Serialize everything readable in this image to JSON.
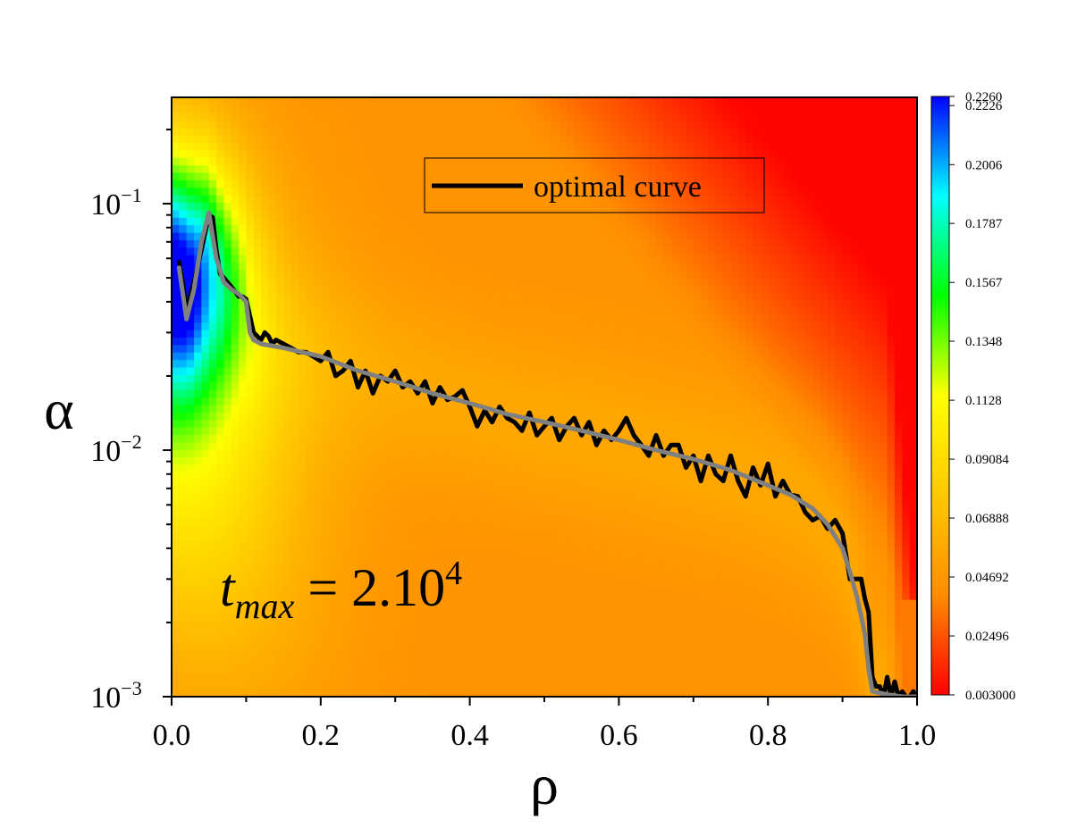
{
  "chart_data": {
    "type": "heatmap",
    "title": "",
    "xlabel": "ρ",
    "ylabel": "α",
    "xlim": [
      0.0,
      1.0
    ],
    "ylim": [
      0.001,
      0.27
    ],
    "yscale": "log",
    "x_ticks": [
      {
        "value": 0.0,
        "label": "0.0"
      },
      {
        "value": 0.2,
        "label": "0.2"
      },
      {
        "value": 0.4,
        "label": "0.4"
      },
      {
        "value": 0.6,
        "label": "0.6"
      },
      {
        "value": 0.8,
        "label": "0.8"
      },
      {
        "value": 1.0,
        "label": "1.0"
      }
    ],
    "y_ticks": [
      {
        "value": 0.001,
        "base": "10",
        "exp": "−3"
      },
      {
        "value": 0.01,
        "base": "10",
        "exp": "−2"
      },
      {
        "value": 0.1,
        "base": "10",
        "exp": "−1"
      }
    ],
    "colorbar": {
      "min": 0.003,
      "max": 0.226,
      "ticks": [
        {
          "value": 0.226,
          "label": "0.2260"
        },
        {
          "value": 0.2226,
          "label": "0.2226"
        },
        {
          "value": 0.2006,
          "label": "0.2006"
        },
        {
          "value": 0.1787,
          "label": "0.1787"
        },
        {
          "value": 0.1567,
          "label": "0.1567"
        },
        {
          "value": 0.1348,
          "label": "0.1348"
        },
        {
          "value": 0.1128,
          "label": "0.1128"
        },
        {
          "value": 0.09084,
          "label": "0.09084"
        },
        {
          "value": 0.06888,
          "label": "0.06888"
        },
        {
          "value": 0.04692,
          "label": "0.04692"
        },
        {
          "value": 0.02496,
          "label": "0.02496"
        },
        {
          "value": 0.003,
          "label": "0.003000"
        }
      ],
      "colors": [
        "#ff0000",
        "#ff8c00",
        "#ffc800",
        "#ffff00",
        "#00ff00",
        "#00ffff",
        "#0000ff"
      ]
    },
    "legend": {
      "label": "optimal curve",
      "placement": "top-center"
    },
    "annotation": {
      "base": "t",
      "sub": "max",
      "rest": " = 2.10",
      "sup": "4"
    },
    "series": [
      {
        "name": "optimal curve",
        "color": "#000000",
        "x": [
          0.01,
          0.015,
          0.02,
          0.025,
          0.03,
          0.035,
          0.04,
          0.045,
          0.05,
          0.055,
          0.06,
          0.065,
          0.07,
          0.075,
          0.08,
          0.085,
          0.09,
          0.095,
          0.1,
          0.105,
          0.11,
          0.115,
          0.12,
          0.125,
          0.13,
          0.135,
          0.14,
          0.15,
          0.16,
          0.17,
          0.18,
          0.19,
          0.2,
          0.21,
          0.22,
          0.23,
          0.24,
          0.25,
          0.26,
          0.27,
          0.28,
          0.29,
          0.3,
          0.31,
          0.32,
          0.33,
          0.34,
          0.35,
          0.36,
          0.37,
          0.38,
          0.39,
          0.4,
          0.41,
          0.42,
          0.43,
          0.44,
          0.45,
          0.46,
          0.47,
          0.48,
          0.49,
          0.5,
          0.51,
          0.52,
          0.53,
          0.54,
          0.55,
          0.56,
          0.57,
          0.58,
          0.59,
          0.6,
          0.61,
          0.62,
          0.63,
          0.64,
          0.65,
          0.66,
          0.67,
          0.68,
          0.69,
          0.7,
          0.71,
          0.72,
          0.73,
          0.74,
          0.75,
          0.76,
          0.77,
          0.78,
          0.79,
          0.8,
          0.81,
          0.82,
          0.83,
          0.84,
          0.85,
          0.86,
          0.87,
          0.88,
          0.89,
          0.9,
          0.91,
          0.92,
          0.925,
          0.93,
          0.935,
          0.94,
          0.945,
          0.95,
          0.955,
          0.96,
          0.965,
          0.97,
          0.975,
          0.98,
          0.985,
          0.99,
          0.995,
          1.0
        ],
        "y": [
          0.058,
          0.048,
          0.036,
          0.042,
          0.048,
          0.056,
          0.065,
          0.076,
          0.09,
          0.088,
          0.065,
          0.052,
          0.05,
          0.048,
          0.046,
          0.044,
          0.042,
          0.042,
          0.041,
          0.035,
          0.03,
          0.029,
          0.028,
          0.03,
          0.029,
          0.027,
          0.028,
          0.027,
          0.026,
          0.025,
          0.025,
          0.024,
          0.023,
          0.025,
          0.02,
          0.021,
          0.023,
          0.018,
          0.021,
          0.017,
          0.02,
          0.019,
          0.021,
          0.018,
          0.019,
          0.017,
          0.019,
          0.0155,
          0.018,
          0.016,
          0.0165,
          0.0175,
          0.015,
          0.0125,
          0.0145,
          0.013,
          0.015,
          0.0135,
          0.013,
          0.012,
          0.0142,
          0.0115,
          0.0125,
          0.0135,
          0.011,
          0.0125,
          0.0135,
          0.0115,
          0.013,
          0.0105,
          0.012,
          0.011,
          0.012,
          0.0135,
          0.0115,
          0.0105,
          0.0095,
          0.0115,
          0.0095,
          0.0105,
          0.0105,
          0.0085,
          0.0095,
          0.0075,
          0.0095,
          0.008,
          0.0075,
          0.0095,
          0.0075,
          0.0065,
          0.0085,
          0.0072,
          0.0088,
          0.0065,
          0.0075,
          0.0066,
          0.0065,
          0.0056,
          0.0052,
          0.0054,
          0.0048,
          0.0052,
          0.0046,
          0.003,
          0.003,
          0.003,
          0.0025,
          0.0022,
          0.0012,
          0.0011,
          0.0011,
          0.001,
          0.0012,
          0.001,
          0.00115,
          0.001,
          0.00105,
          0.001,
          0.001,
          0.00105,
          0.001
        ]
      },
      {
        "color": "#808080",
        "x": [
          0.01,
          0.02,
          0.03,
          0.04,
          0.05,
          0.06,
          0.07,
          0.08,
          0.09,
          0.1,
          0.105,
          0.11,
          0.12,
          0.15,
          0.2,
          0.25,
          0.3,
          0.35,
          0.4,
          0.45,
          0.5,
          0.55,
          0.6,
          0.65,
          0.7,
          0.75,
          0.8,
          0.83,
          0.86,
          0.88,
          0.9,
          0.91,
          0.92,
          0.93,
          0.935,
          0.94,
          0.96,
          0.98,
          1.0
        ],
        "y": [
          0.055,
          0.034,
          0.045,
          0.07,
          0.092,
          0.06,
          0.048,
          0.045,
          0.043,
          0.04,
          0.03,
          0.028,
          0.027,
          0.026,
          0.024,
          0.021,
          0.019,
          0.017,
          0.0155,
          0.014,
          0.013,
          0.012,
          0.011,
          0.01,
          0.0092,
          0.0083,
          0.0072,
          0.0066,
          0.0058,
          0.005,
          0.004,
          0.0032,
          0.0025,
          0.0018,
          0.0013,
          0.00105,
          0.00102,
          0.001,
          0.001
        ]
      }
    ]
  }
}
